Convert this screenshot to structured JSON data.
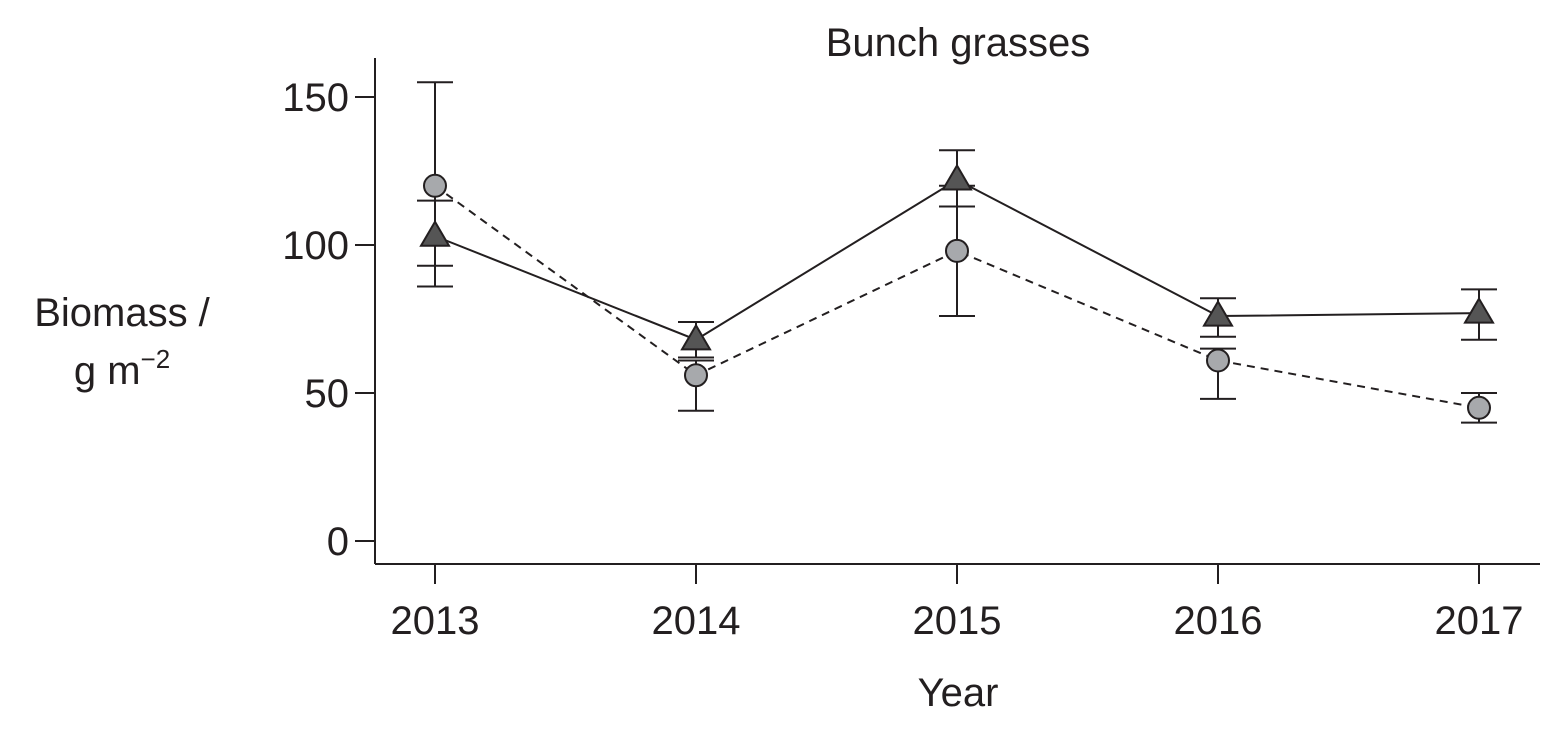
{
  "chart_data": {
    "type": "line",
    "title": "Bunch grasses",
    "xlabel": "Year",
    "ylabel_line1": "Biomass /",
    "ylabel_line2_base": "g m",
    "ylabel_line2_sup": "−2",
    "x": [
      "2013",
      "2014",
      "2015",
      "2016",
      "2017"
    ],
    "ylim": [
      0,
      160
    ],
    "yticks": [
      "0",
      "50",
      "100",
      "150"
    ],
    "ytick_values": [
      0,
      50,
      100,
      150
    ],
    "grid": false,
    "series": [
      {
        "marker": "triangle",
        "line_style": "solid",
        "color": "#555555",
        "values": [
          103,
          68,
          122,
          76,
          77
        ],
        "err_low": [
          86,
          62,
          113,
          69,
          68
        ],
        "err_high": [
          115,
          74,
          132,
          82,
          85
        ]
      },
      {
        "marker": "circle",
        "line_style": "dashed",
        "color": "#a7a9ac",
        "values": [
          120,
          56,
          98,
          61,
          45
        ],
        "err_low": [
          93,
          44,
          76,
          48,
          40
        ],
        "err_high": [
          155,
          61,
          120,
          65,
          50
        ]
      }
    ]
  }
}
